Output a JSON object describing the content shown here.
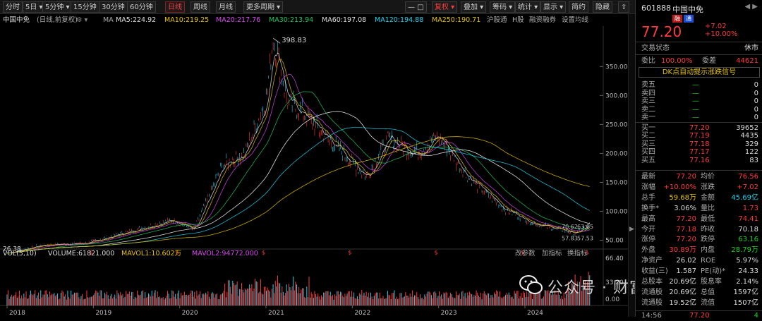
{
  "toolbar": {
    "buttons": [
      "分时",
      "5日",
      "5分钟",
      "15分钟",
      "30分钟",
      "60分钟",
      "日线",
      "周线",
      "月线",
      "更多周期",
      "复权",
      "叠加",
      "筹码",
      "统计",
      "显示",
      "简约",
      "隐藏"
    ],
    "active": "日线"
  },
  "info": {
    "title": "中国中免",
    "subtitle": "(日线,前复权)",
    "ma_label": "MA",
    "ma5": "MA5:224.92",
    "ma10": "MA10:219.25",
    "ma20": "MA20:217.76",
    "ma30": "MA30:213.94",
    "ma60": "MA60:197.08",
    "ma120": "MA120:194.88",
    "ma250": "MA250:190.71",
    "extra1": "沪股通",
    "extra2": "H股",
    "extra3": "融资融券",
    "extra4": "设置均线"
  },
  "chart_data": {
    "type": "line",
    "title": "中国中免",
    "x_labels": [
      "2018",
      "2019",
      "2020",
      "2021",
      "2022",
      "2023",
      "2024"
    ],
    "y_ticks": [
      50.0,
      100.0,
      150.0,
      200.0,
      250.0,
      300.0,
      350.0
    ],
    "ylim": [
      30,
      410
    ],
    "price_points": [
      {
        "x": "2018-01",
        "y": 28
      },
      {
        "x": "2018-06",
        "y": 42
      },
      {
        "x": "2018-12",
        "y": 45
      },
      {
        "x": "2019-06",
        "y": 65
      },
      {
        "x": "2019-12",
        "y": 85
      },
      {
        "x": "2020-03",
        "y": 68
      },
      {
        "x": "2020-07",
        "y": 180
      },
      {
        "x": "2020-10",
        "y": 200
      },
      {
        "x": "2021-01",
        "y": 290
      },
      {
        "x": "2021-02",
        "y": 398.83
      },
      {
        "x": "2021-04",
        "y": 290
      },
      {
        "x": "2021-07",
        "y": 260
      },
      {
        "x": "2021-10",
        "y": 220
      },
      {
        "x": "2022-03",
        "y": 160
      },
      {
        "x": "2022-06",
        "y": 225
      },
      {
        "x": "2022-10",
        "y": 200
      },
      {
        "x": "2023-01",
        "y": 230
      },
      {
        "x": "2023-05",
        "y": 160
      },
      {
        "x": "2023-10",
        "y": 105
      },
      {
        "x": "2024-02",
        "y": 80
      },
      {
        "x": "2024-08",
        "y": 62
      },
      {
        "x": "2024-10",
        "y": 77
      }
    ],
    "max_label": "398.83",
    "min_label": "26.38",
    "right_labels": [
      "70.62",
      "63.05",
      "57.83",
      "57.53"
    ],
    "volume": {
      "label": "VOL(5,10)",
      "volume": "VOLUME:61821.000",
      "mavol1": "MAVOL1:10.602万",
      "mavol2": "MAVOL2:94772.000",
      "y_ticks": [
        "66.40",
        "33.20",
        "0.00"
      ],
      "right_links": [
        "改参数",
        "加指标",
        "换指标"
      ]
    }
  },
  "panel": {
    "code": "601888",
    "name": "中国中免",
    "tags": [
      "融",
      "通"
    ],
    "price": "77.20",
    "change": "+7.02",
    "change_pct": "+10.00%",
    "status_label": "交易状态",
    "status_value": "休市",
    "wb_label": "委比",
    "wb_value": "100.00%",
    "wc_label": "委差",
    "wc_value": "44621",
    "dk_button": "DK点自动提示涨跌信号",
    "asks": [
      {
        "label": "卖五",
        "price": "—",
        "vol": "0"
      },
      {
        "label": "卖四",
        "price": "—",
        "vol": "0"
      },
      {
        "label": "卖三",
        "price": "—",
        "vol": "0"
      },
      {
        "label": "卖二",
        "price": "—",
        "vol": "0"
      },
      {
        "label": "卖一",
        "price": "—",
        "vol": "0"
      }
    ],
    "bids": [
      {
        "label": "买一",
        "price": "77.20",
        "vol": "39652"
      },
      {
        "label": "买二",
        "price": "77.19",
        "vol": "4435"
      },
      {
        "label": "买三",
        "price": "77.18",
        "vol": "329"
      },
      {
        "label": "买四",
        "price": "77.17",
        "vol": "122"
      },
      {
        "label": "买五",
        "price": "77.16",
        "vol": "83"
      }
    ],
    "stats": [
      {
        "l1": "最新",
        "v1": "77.20",
        "c1": "red",
        "l2": "均价",
        "v2": "76.56",
        "c2": "red"
      },
      {
        "l1": "涨幅",
        "v1": "+10.00%",
        "c1": "red",
        "l2": "涨跌",
        "v2": "+7.02",
        "c2": "red"
      },
      {
        "l1": "总手",
        "v1": "59.68万",
        "c1": "yellow",
        "l2": "金额",
        "v2": "45.69亿",
        "c2": "cyan"
      },
      {
        "l1": "换手*",
        "v1": "3.06%",
        "c1": "white",
        "l2": "量比",
        "v2": "1.73",
        "c2": "red"
      },
      {
        "l1": "最高",
        "v1": "77.20",
        "c1": "red",
        "l2": "最低",
        "v2": "74.41",
        "c2": "red"
      },
      {
        "l1": "今开",
        "v1": "77.18",
        "c1": "red",
        "l2": "昨收",
        "v2": "70.18",
        "c2": "white"
      },
      {
        "l1": "涨停",
        "v1": "77.20",
        "c1": "red",
        "l2": "跌停",
        "v2": "63.16",
        "c2": "green"
      },
      {
        "l1": "外盘",
        "v1": "30.89万",
        "c1": "red",
        "l2": "内盘",
        "v2": "28.79万",
        "c2": "green"
      },
      {
        "l1": "净资产",
        "v1": "26.02",
        "c1": "white",
        "l2": "ROE",
        "v2": "5.97%",
        "c2": "white"
      },
      {
        "l1": "收益(三)",
        "v1": "1.587",
        "c1": "white",
        "l2": "PE(动)*",
        "v2": "24.33",
        "c2": "white"
      },
      {
        "l1": "总股本",
        "v1": "20.69亿",
        "c1": "white",
        "l2": "股息率",
        "v2": "2.14%",
        "c2": "white"
      },
      {
        "l1": "流通股",
        "v1": "20.69亿",
        "c1": "white",
        "l2": "总值",
        "v2": "1597亿",
        "c2": "white"
      },
      {
        "l1": "流通股",
        "v1": "19.52亿",
        "c1": "white",
        "l2": "流值",
        "v2": "1507亿",
        "c2": "white"
      }
    ],
    "time": "14:56",
    "time_price": "77.20",
    "time_vol": "4"
  },
  "watermark": "公众号 · 财富狮角兽"
}
